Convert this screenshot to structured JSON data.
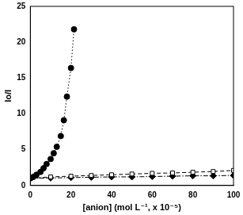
{
  "chart_data": {
    "type": "line",
    "x_label": "[anion] (mol L⁻¹, x 10⁻⁵)",
    "y_label": "Io/I",
    "xlim": [
      0,
      100
    ],
    "xticks": [
      0,
      20,
      40,
      60,
      80,
      100
    ],
    "ylim": [
      0,
      25
    ],
    "yticks": [
      0,
      5,
      10,
      15,
      20,
      25
    ],
    "grid": false,
    "series": [
      {
        "color": "#000000",
        "marker": "circle",
        "line_style": "dotted",
        "x": [
          0,
          1.5,
          3,
          5,
          6.5,
          8,
          10,
          11.5,
          13,
          15,
          16.5,
          18,
          20,
          21.5
        ],
        "values": [
          1.0,
          1.2,
          1.5,
          1.9,
          2.4,
          3.0,
          3.7,
          4.5,
          5.4,
          6.9,
          9.1,
          12.4,
          16.4,
          21.8
        ]
      },
      {
        "color": "#000000",
        "marker": "square-open",
        "line_style": "dashed",
        "x": [
          0,
          10,
          20,
          30,
          40,
          50,
          60,
          70,
          80,
          90,
          100
        ],
        "values": [
          1.0,
          1.2,
          1.3,
          1.4,
          1.5,
          1.6,
          1.7,
          1.75,
          1.85,
          1.95,
          2.1
        ]
      },
      {
        "color": "#000000",
        "marker": "diamond",
        "line_style": "dashdot",
        "x": [
          0,
          10,
          20,
          30,
          40,
          50,
          60,
          70,
          80,
          90,
          100
        ],
        "values": [
          1.0,
          1.05,
          1.1,
          1.15,
          1.2,
          1.2,
          1.25,
          1.3,
          1.35,
          1.35,
          1.4
        ]
      }
    ]
  }
}
